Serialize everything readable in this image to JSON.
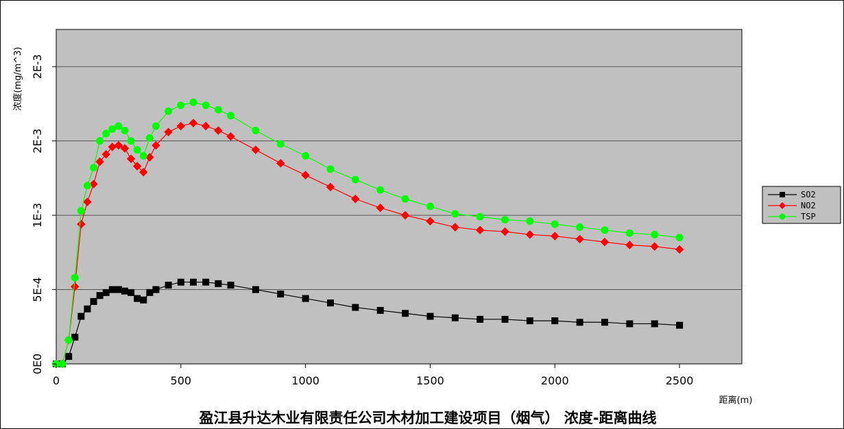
{
  "chart_data": {
    "type": "line",
    "title": "盈江县升达木业有限责任公司木材加工建设项目（烟气） 浓度-距离曲线",
    "xlabel": "距离(m)",
    "ylabel": "浓度(mg/m^3)",
    "xlim": [
      0,
      2750
    ],
    "ylim": [
      0,
      0.00225
    ],
    "x_ticks": [
      0,
      500,
      1000,
      1500,
      2000,
      2500
    ],
    "x_tick_labels": [
      "0",
      "500",
      "1000",
      "1500",
      "2000",
      "2500"
    ],
    "y_ticks": [
      0,
      0.0005,
      0.001,
      0.0015,
      0.002
    ],
    "y_tick_labels": [
      "0E0",
      "5E-4",
      "1E-3",
      "2E-3",
      "2E-3"
    ],
    "grid": true,
    "legend_position": "right",
    "background_color": "#c0c0c0",
    "series": [
      {
        "name": "SO2",
        "color": "#000000",
        "marker": "square",
        "points": [
          [
            0,
            0
          ],
          [
            25,
            0
          ],
          [
            50,
            5e-05
          ],
          [
            75,
            0.00018
          ],
          [
            100,
            0.00032
          ],
          [
            125,
            0.00037
          ],
          [
            150,
            0.00042
          ],
          [
            175,
            0.00046
          ],
          [
            200,
            0.00048
          ],
          [
            225,
            0.0005
          ],
          [
            250,
            0.0005
          ],
          [
            275,
            0.00049
          ],
          [
            300,
            0.00048
          ],
          [
            325,
            0.00044
          ],
          [
            350,
            0.00043
          ],
          [
            375,
            0.00048
          ],
          [
            400,
            0.0005
          ],
          [
            450,
            0.00053
          ],
          [
            500,
            0.00055
          ],
          [
            550,
            0.00055
          ],
          [
            600,
            0.00055
          ],
          [
            650,
            0.00054
          ],
          [
            700,
            0.00053
          ],
          [
            800,
            0.0005
          ],
          [
            900,
            0.00047
          ],
          [
            1000,
            0.00044
          ],
          [
            1100,
            0.00041
          ],
          [
            1200,
            0.00038
          ],
          [
            1300,
            0.00036
          ],
          [
            1400,
            0.00034
          ],
          [
            1500,
            0.00032
          ],
          [
            1600,
            0.00031
          ],
          [
            1700,
            0.0003
          ],
          [
            1800,
            0.0003
          ],
          [
            1900,
            0.00029
          ],
          [
            2000,
            0.00029
          ],
          [
            2100,
            0.00028
          ],
          [
            2200,
            0.00028
          ],
          [
            2300,
            0.00027
          ],
          [
            2400,
            0.00027
          ],
          [
            2500,
            0.00026
          ]
        ]
      },
      {
        "name": "NO2",
        "color": "#ff0000",
        "marker": "diamond",
        "points": [
          [
            0,
            0
          ],
          [
            25,
            0
          ],
          [
            50,
            0.00016
          ],
          [
            75,
            0.00052
          ],
          [
            100,
            0.00094
          ],
          [
            125,
            0.00109
          ],
          [
            150,
            0.00121
          ],
          [
            175,
            0.00136
          ],
          [
            200,
            0.00141
          ],
          [
            225,
            0.00146
          ],
          [
            250,
            0.00147
          ],
          [
            275,
            0.00145
          ],
          [
            300,
            0.00138
          ],
          [
            325,
            0.00133
          ],
          [
            350,
            0.00129
          ],
          [
            375,
            0.00139
          ],
          [
            400,
            0.00147
          ],
          [
            450,
            0.00156
          ],
          [
            500,
            0.0016
          ],
          [
            550,
            0.00162
          ],
          [
            600,
            0.0016
          ],
          [
            650,
            0.00157
          ],
          [
            700,
            0.00153
          ],
          [
            800,
            0.00144
          ],
          [
            900,
            0.00135
          ],
          [
            1000,
            0.00127
          ],
          [
            1100,
            0.00119
          ],
          [
            1200,
            0.00111
          ],
          [
            1300,
            0.00105
          ],
          [
            1400,
            0.001
          ],
          [
            1500,
            0.00096
          ],
          [
            1600,
            0.00092
          ],
          [
            1700,
            0.0009
          ],
          [
            1800,
            0.00089
          ],
          [
            1900,
            0.00087
          ],
          [
            2000,
            0.00086
          ],
          [
            2100,
            0.00084
          ],
          [
            2200,
            0.00082
          ],
          [
            2300,
            0.0008
          ],
          [
            2400,
            0.00079
          ],
          [
            2500,
            0.00077
          ]
        ]
      },
      {
        "name": "TSP",
        "color": "#00ff00",
        "marker": "circle",
        "points": [
          [
            0,
            0
          ],
          [
            25,
            0
          ],
          [
            50,
            0.00016
          ],
          [
            75,
            0.00058
          ],
          [
            100,
            0.00103
          ],
          [
            125,
            0.0012
          ],
          [
            150,
            0.00132
          ],
          [
            175,
            0.0015
          ],
          [
            200,
            0.00155
          ],
          [
            225,
            0.00158
          ],
          [
            250,
            0.0016
          ],
          [
            275,
            0.00157
          ],
          [
            300,
            0.0015
          ],
          [
            325,
            0.00144
          ],
          [
            350,
            0.0014
          ],
          [
            375,
            0.00152
          ],
          [
            400,
            0.0016
          ],
          [
            450,
            0.0017
          ],
          [
            500,
            0.00174
          ],
          [
            550,
            0.00176
          ],
          [
            600,
            0.00174
          ],
          [
            650,
            0.00171
          ],
          [
            700,
            0.00167
          ],
          [
            800,
            0.00157
          ],
          [
            900,
            0.00148
          ],
          [
            1000,
            0.0014
          ],
          [
            1100,
            0.00131
          ],
          [
            1200,
            0.00124
          ],
          [
            1300,
            0.00117
          ],
          [
            1400,
            0.00111
          ],
          [
            1500,
            0.00106
          ],
          [
            1600,
            0.00101
          ],
          [
            1700,
            0.00099
          ],
          [
            1800,
            0.00097
          ],
          [
            1900,
            0.00096
          ],
          [
            2000,
            0.00094
          ],
          [
            2100,
            0.00092
          ],
          [
            2200,
            0.0009
          ],
          [
            2300,
            0.00088
          ],
          [
            2400,
            0.00087
          ],
          [
            2500,
            0.00085
          ]
        ]
      }
    ]
  }
}
